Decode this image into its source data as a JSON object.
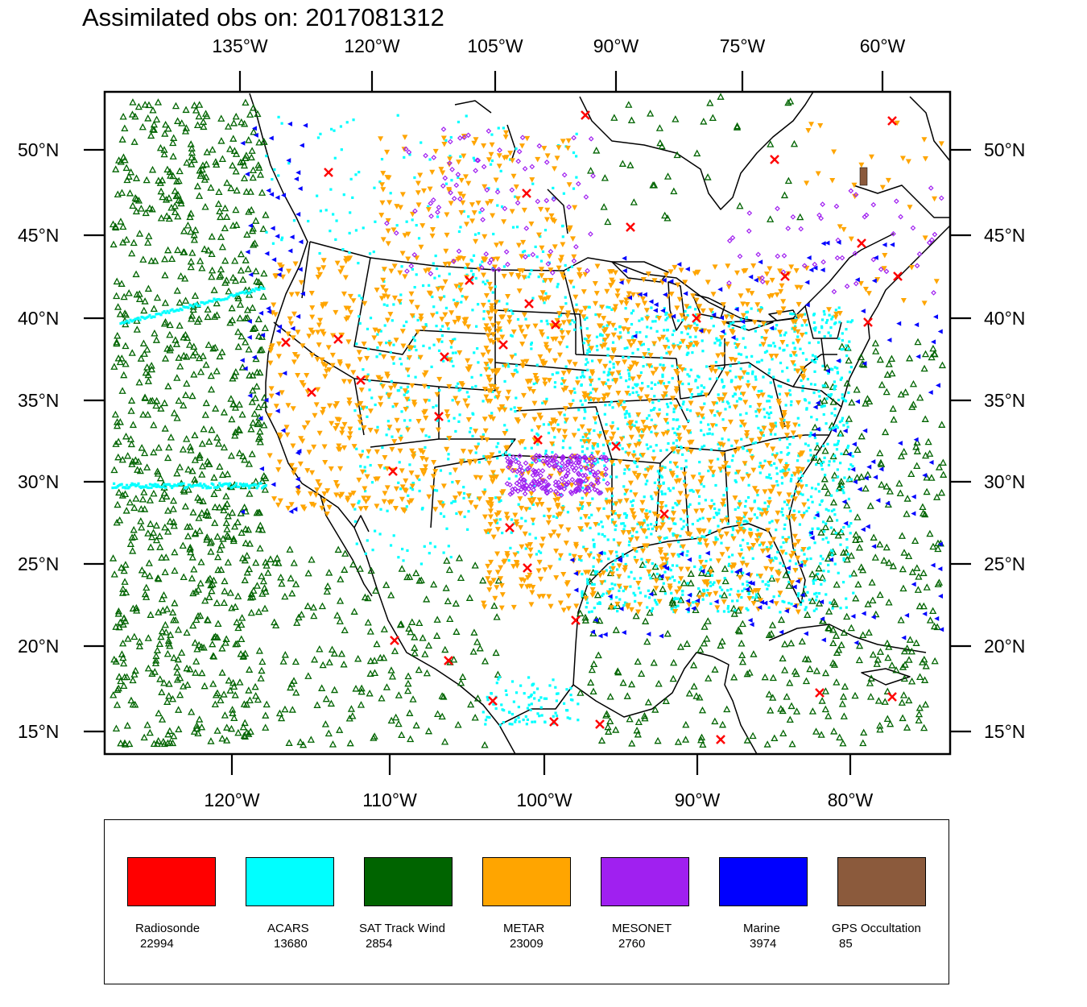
{
  "title": "Assimilated obs on: 2017081312",
  "axes": {
    "top_lon_labels": [
      "135°W",
      "120°W",
      "105°W",
      "90°W",
      "75°W",
      "60°W"
    ],
    "bottom_lon_labels": [
      "120°W",
      "110°W",
      "100°W",
      "90°W",
      "80°W"
    ],
    "lat_labels": [
      "50°N",
      "45°N",
      "40°N",
      "35°N",
      "30°N",
      "25°N",
      "20°N",
      "15°N"
    ]
  },
  "legend": [
    {
      "name": "Radiosonde",
      "count": "22994",
      "color": "#ff0000"
    },
    {
      "name": "ACARS",
      "count": "13680",
      "color": "#00ffff"
    },
    {
      "name": "SAT Track Wind",
      "count": "2854",
      "color": "#006400"
    },
    {
      "name": "METAR",
      "count": "23009",
      "color": "#ffa500"
    },
    {
      "name": "MESONET",
      "count": "2760",
      "color": "#a020f0"
    },
    {
      "name": "Marine",
      "count": "3974",
      "color": "#0000ff"
    },
    {
      "name": "GPS Occultation",
      "count": "85",
      "color": "#8b5a3c"
    }
  ]
}
